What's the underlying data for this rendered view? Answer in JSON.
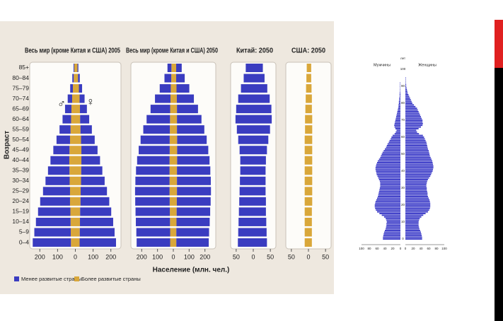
{
  "legend": [
    {
      "name": "Менее развитые страны",
      "color": "#3a3cc0"
    },
    {
      "name": "Более развитые страны",
      "color": "#d9a73a"
    }
  ],
  "chart_data": [
    {
      "type": "pyramid",
      "title": "Весь мир (кроме Китая и США) 2005",
      "ylabel": "Возраст",
      "male_symbol": "♂",
      "female_symbol": "♀",
      "categories": [
        "0–4",
        "5–9",
        "10–14",
        "15–19",
        "20–24",
        "25–29",
        "30–34",
        "35–39",
        "40–44",
        "45–49",
        "50–54",
        "55–59",
        "60–64",
        "65–69",
        "70–74",
        "75–79",
        "80–84",
        "85+"
      ],
      "xlim": [
        -245,
        245
      ],
      "xticks": [
        {
          "value": -200,
          "label": "200"
        },
        {
          "value": -100,
          "label": "100"
        },
        0,
        100,
        200
      ],
      "series": [
        {
          "color": "#3a3cc0",
          "male": [
            215,
            205,
            195,
            182,
            168,
            152,
            136,
            121,
            106,
            91,
            76,
            62,
            48,
            36,
            25,
            15,
            8,
            4
          ],
          "female": [
            205,
            196,
            187,
            175,
            162,
            148,
            133,
            119,
            105,
            91,
            77,
            64,
            51,
            39,
            28,
            18,
            10,
            5
          ]
        },
        {
          "color": "#d9a73a",
          "male": [
            25,
            26,
            27,
            28,
            30,
            30,
            32,
            33,
            34,
            33,
            30,
            27,
            24,
            22,
            18,
            14,
            9,
            6
          ],
          "female": [
            24,
            25,
            26,
            27,
            29,
            30,
            32,
            33,
            34,
            34,
            32,
            29,
            27,
            26,
            24,
            20,
            15,
            12
          ]
        }
      ]
    },
    {
      "type": "pyramid",
      "title": "Весь мир (кроме Китая и США) 2050",
      "xlabel": "Население (млн. чел.)",
      "xlim": [
        -255,
        255
      ],
      "xticks": [
        {
          "value": -200,
          "label": "200"
        },
        {
          "value": -100,
          "label": "100"
        },
        0,
        100,
        200
      ],
      "series": [
        {
          "color": "#3a3cc0",
          "male": [
            212,
            214,
            216,
            217,
            218,
            218,
            216,
            212,
            205,
            196,
            184,
            168,
            148,
            124,
            98,
            70,
            43,
            25
          ],
          "female": [
            205,
            207,
            210,
            212,
            214,
            215,
            214,
            211,
            205,
            197,
            187,
            173,
            155,
            133,
            108,
            81,
            54,
            35
          ]
        },
        {
          "color": "#d9a73a",
          "male": [
            20,
            20,
            21,
            22,
            23,
            24,
            24,
            24,
            24,
            23,
            23,
            22,
            21,
            20,
            18,
            16,
            13,
            12
          ],
          "female": [
            19,
            19,
            20,
            21,
            22,
            23,
            23,
            23,
            24,
            24,
            24,
            23,
            23,
            23,
            22,
            20,
            18,
            18
          ]
        }
      ]
    },
    {
      "type": "pyramid",
      "title": "Китай: 2050",
      "xlim": [
        -60,
        60
      ],
      "xticks": [
        {
          "value": -50,
          "label": "50"
        },
        0,
        50
      ],
      "series": [
        {
          "color": "#3a3cc0",
          "male": [
            45,
            44,
            43,
            42,
            41,
            40,
            39,
            38,
            38,
            40,
            44,
            48,
            52,
            50,
            44,
            36,
            28,
            22
          ],
          "female": [
            40,
            39,
            38,
            37,
            37,
            36,
            36,
            36,
            37,
            40,
            44,
            49,
            54,
            53,
            48,
            41,
            33,
            28
          ]
        }
      ]
    },
    {
      "type": "pyramid",
      "title": "США: 2050",
      "xlim": [
        -60,
        60
      ],
      "xticks": [
        {
          "value": -50,
          "label": "50"
        },
        0,
        50
      ],
      "series": [
        {
          "color": "#d9a73a",
          "male": [
            11,
            11,
            11,
            11,
            11,
            11,
            11,
            11,
            11,
            11,
            11,
            10,
            10,
            9,
            8,
            7,
            6,
            5
          ],
          "female": [
            10,
            10,
            10,
            10,
            11,
            11,
            11,
            11,
            11,
            11,
            11,
            11,
            11,
            10,
            10,
            9,
            8,
            8
          ]
        }
      ]
    },
    {
      "type": "halfpyramid",
      "left_label": "Мужчины",
      "right_label": "Женщины",
      "ytitle": "лет",
      "color": "#3c3cc8",
      "xlim": [
        0,
        100
      ],
      "xticks_left": [
        100,
        80,
        60,
        40,
        20,
        0
      ],
      "xticks_right": [
        0,
        20,
        40,
        60,
        80,
        100
      ],
      "ylim": [
        0,
        100
      ],
      "yticks": [
        0,
        10,
        20,
        30,
        40,
        50,
        60,
        70,
        80,
        90,
        100
      ],
      "male": [
        45,
        45,
        44,
        43,
        42,
        40,
        38,
        37,
        36,
        36,
        35,
        36,
        38,
        42,
        48,
        54,
        60,
        63,
        65,
        66,
        66,
        65,
        64,
        62,
        60,
        58,
        57,
        56,
        55,
        54,
        53,
        52,
        52,
        52,
        53,
        55,
        57,
        59,
        61,
        62,
        63,
        64,
        64,
        63,
        62,
        60,
        58,
        55,
        52,
        50,
        48,
        46,
        43,
        40,
        37,
        35,
        33,
        30,
        28,
        25,
        23,
        20,
        15,
        12,
        10,
        13,
        15,
        16,
        15,
        14,
        13,
        12,
        11,
        10,
        9,
        8,
        7,
        6,
        5,
        5,
        4,
        4,
        3,
        3,
        2,
        2,
        2,
        1,
        1,
        1,
        1,
        1,
        1,
        0,
        0,
        0,
        0,
        0,
        0,
        0,
        0
      ],
      "female": [
        43,
        43,
        42,
        41,
        40,
        38,
        36,
        35,
        34,
        34,
        34,
        35,
        37,
        41,
        46,
        52,
        58,
        61,
        63,
        64,
        64,
        64,
        63,
        62,
        60,
        58,
        57,
        57,
        56,
        55,
        55,
        54,
        54,
        55,
        56,
        58,
        61,
        64,
        66,
        68,
        70,
        71,
        72,
        72,
        71,
        70,
        69,
        67,
        65,
        63,
        62,
        61,
        60,
        58,
        57,
        56,
        55,
        54,
        52,
        50,
        48,
        45,
        35,
        30,
        28,
        34,
        40,
        44,
        45,
        44,
        44,
        42,
        40,
        38,
        36,
        34,
        32,
        30,
        26,
        22,
        18,
        16,
        14,
        12,
        10,
        8,
        6,
        5,
        4,
        3,
        2,
        2,
        1,
        1,
        1,
        1,
        0,
        0,
        0,
        0,
        0
      ]
    }
  ]
}
